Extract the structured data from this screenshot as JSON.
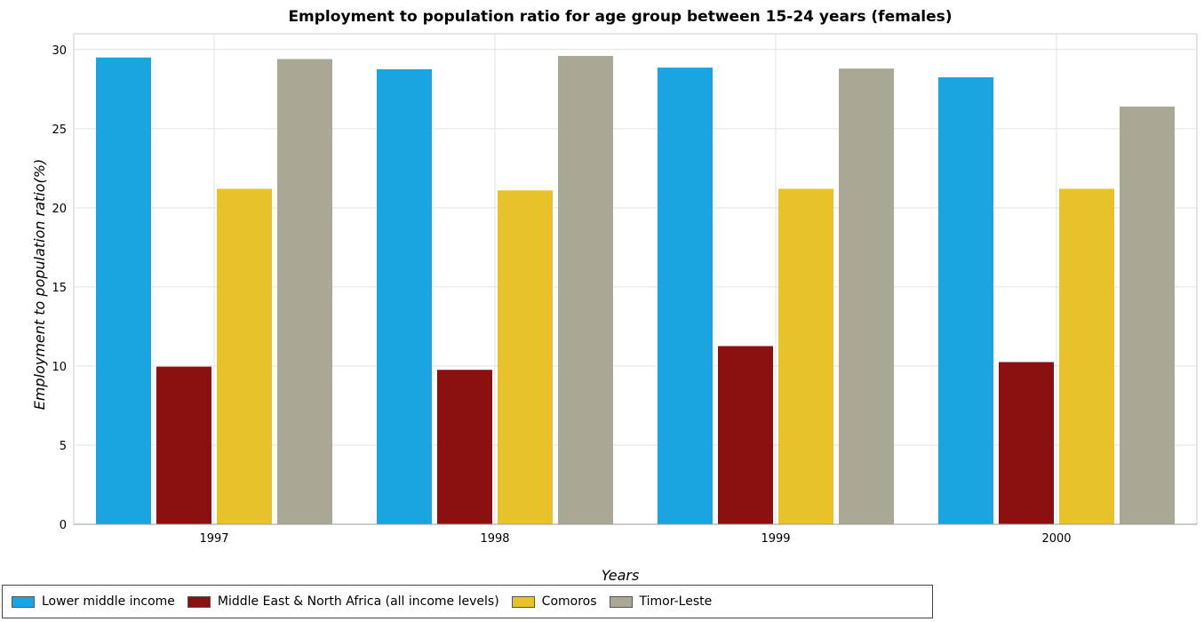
{
  "chart_data": {
    "type": "bar",
    "title": "Employment to population ratio for age group between 15-24 years (females)",
    "xlabel": "Years",
    "ylabel": "Employment to population ratio(%)",
    "categories": [
      "1997",
      "1998",
      "1999",
      "2000"
    ],
    "ylim": [
      0,
      31
    ],
    "yticks": [
      "0",
      "5",
      "10",
      "15",
      "20",
      "25",
      "30"
    ],
    "grid": true,
    "legend_position": "bottom-left",
    "series": [
      {
        "name": "Lower middle income",
        "color": "#1ba5e0",
        "values": [
          29.5,
          28.76,
          28.86,
          28.25
        ]
      },
      {
        "name": "Middle East & North Africa (all income levels)",
        "color": "#8b1010",
        "values": [
          9.96,
          9.76,
          11.26,
          10.25
        ]
      },
      {
        "name": "Comoros",
        "color": "#e8c229",
        "values": [
          21.2,
          21.1,
          21.2,
          21.2
        ]
      },
      {
        "name": "Timor-Leste",
        "color": "#a8a894",
        "values": [
          29.4,
          29.6,
          28.8,
          26.4
        ]
      }
    ]
  }
}
